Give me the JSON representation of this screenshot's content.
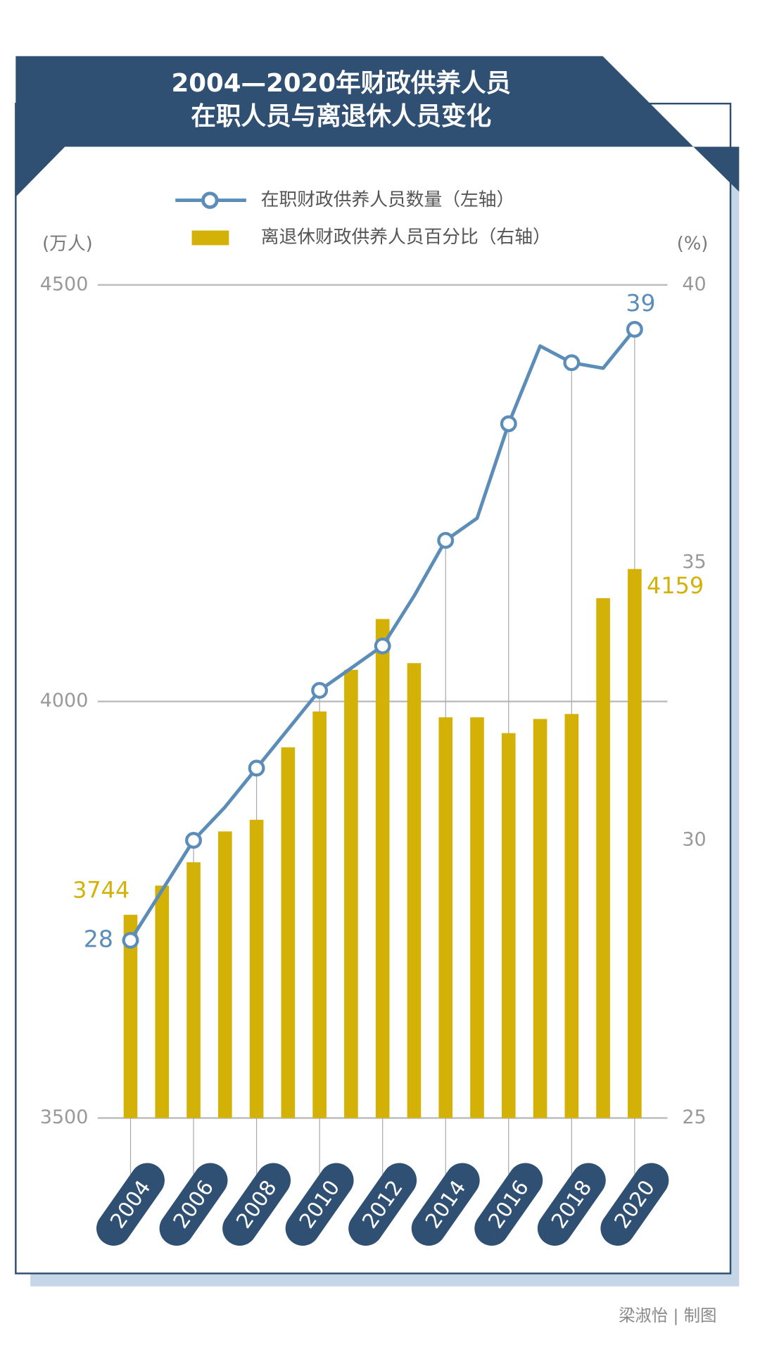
{
  "chart_data": {
    "type": "bar_line",
    "title": [
      "2004—2020年财政供养人员",
      "在职人员与离退休人员变化"
    ],
    "categories": [
      "2004",
      null,
      "2006",
      null,
      "2008",
      null,
      "2010",
      null,
      "2012",
      null,
      "2014",
      null,
      "2016",
      null,
      "2018",
      null,
      "2020"
    ],
    "series": [
      {
        "name": "在职财政供养人员数量（左轴）",
        "type": "line",
        "axis": "y2",
        "color": "#5b8db8",
        "values": [
          28.2,
          29.1,
          30.0,
          30.6,
          31.3,
          32.0,
          32.7,
          33.1,
          33.5,
          34.4,
          35.4,
          35.8,
          37.5,
          38.9,
          38.6,
          38.5,
          39.2
        ],
        "value_labels": [
          "28",
          null,
          null,
          null,
          null,
          null,
          null,
          null,
          null,
          null,
          null,
          null,
          null,
          null,
          null,
          null,
          "39"
        ]
      },
      {
        "name": "离退休财政供养人员百分比（右轴）",
        "type": "bar",
        "axis": "y",
        "color": "#d4b106",
        "values": [
          3744,
          3779,
          3807,
          3844,
          3858,
          3945,
          3988,
          4038,
          4099,
          4046,
          3981,
          3981,
          3962,
          3979,
          3985,
          4124,
          4159
        ],
        "value_labels": [
          "3744",
          null,
          null,
          null,
          null,
          null,
          null,
          null,
          null,
          null,
          null,
          null,
          null,
          null,
          null,
          null,
          "4159"
        ]
      }
    ],
    "y_label": "(万人)",
    "y2_label": "(%)",
    "ylim": [
      3500,
      4500
    ],
    "yticks": [
      3500,
      4000,
      4500
    ],
    "y2lim": [
      25,
      40
    ],
    "y2ticks": [
      25,
      30,
      35,
      40
    ],
    "grid": true,
    "credit": "梁淑怡 | 制图"
  }
}
